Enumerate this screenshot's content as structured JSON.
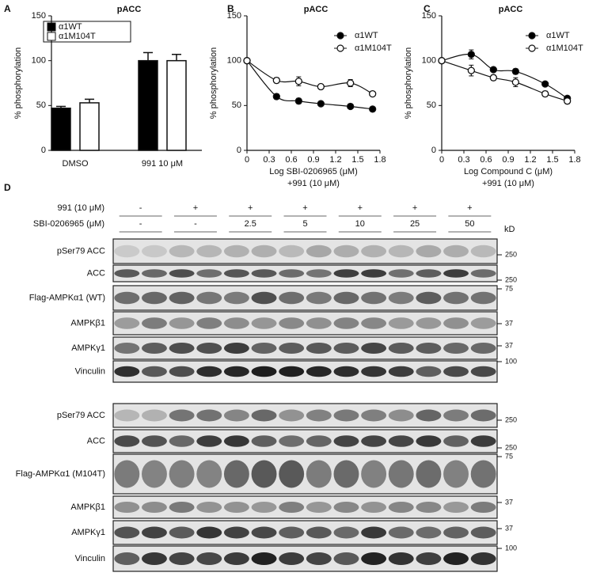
{
  "chart_data": [
    {
      "type": "bar",
      "panel": "A",
      "title": "pACC",
      "ylabel": "% phosphorylation",
      "categories": [
        "DMSO",
        "991 10 μM"
      ],
      "series": [
        {
          "name": "α1WT",
          "color": "#000000",
          "values": [
            47,
            100
          ],
          "errors": [
            2,
            9
          ]
        },
        {
          "name": "α1M104T",
          "color": "#ffffff",
          "values": [
            53,
            100
          ],
          "errors": [
            4,
            7
          ]
        }
      ],
      "ylim": [
        0,
        150
      ],
      "yticks": [
        0,
        50,
        100,
        150
      ]
    },
    {
      "type": "scatter",
      "panel": "B",
      "title": "pACC",
      "ylabel": "% phosphorylation",
      "xlabel": [
        "Log SBI-0206965 (μM)",
        "+991 (10 μM)"
      ],
      "x": [
        0,
        0.4,
        0.7,
        1.0,
        1.4,
        1.7
      ],
      "series": [
        {
          "name": "α1WT",
          "color": "#000000",
          "values": [
            100,
            60,
            55,
            52,
            49,
            46
          ],
          "errors": [
            0,
            3,
            3,
            1,
            1,
            1
          ]
        },
        {
          "name": "α1M104T",
          "color": "#ffffff",
          "values": [
            100,
            78,
            77,
            71,
            75,
            63
          ],
          "errors": [
            0,
            3,
            5,
            2,
            4,
            2
          ]
        }
      ],
      "xlim": [
        0,
        1.8
      ],
      "xticks": [
        0,
        0.3,
        0.6,
        0.9,
        1.2,
        1.5,
        1.8
      ],
      "ylim": [
        0,
        150
      ],
      "yticks": [
        0,
        50,
        100,
        150
      ]
    },
    {
      "type": "scatter",
      "panel": "C",
      "title": "pACC",
      "ylabel": "% phosphorylation",
      "xlabel": [
        "Log Compound C (μM)",
        "+991 (10 μM)"
      ],
      "x": [
        0,
        0.4,
        0.7,
        1.0,
        1.4,
        1.7
      ],
      "series": [
        {
          "name": "α1WT",
          "color": "#000000",
          "values": [
            100,
            107,
            90,
            88,
            74,
            58
          ],
          "errors": [
            0,
            5,
            2,
            3,
            2,
            2
          ]
        },
        {
          "name": "α1M104T",
          "color": "#ffffff",
          "values": [
            100,
            89,
            81,
            76,
            63,
            55
          ],
          "errors": [
            0,
            6,
            3,
            5,
            3,
            3
          ]
        }
      ],
      "xlim": [
        0,
        1.8
      ],
      "xticks": [
        0,
        0.3,
        0.6,
        0.9,
        1.2,
        1.5,
        1.8
      ],
      "ylim": [
        0,
        150
      ],
      "yticks": [
        0,
        50,
        100,
        150
      ]
    }
  ],
  "blots": {
    "panel": "D",
    "unit": "kD",
    "header": [
      {
        "label": "991 (10 μM)",
        "values": [
          "-",
          "+",
          "+",
          "+",
          "+",
          "+",
          "+"
        ]
      },
      {
        "label": "SBI-0206965 (μM)",
        "values": [
          "-",
          "-",
          "2.5",
          "5",
          "10",
          "25",
          "50"
        ]
      }
    ],
    "sets": [
      {
        "rows": [
          {
            "label": "pSer79 ACC",
            "marker": "250"
          },
          {
            "label": "ACC",
            "marker": "250"
          },
          {
            "label": "Flag-AMPKα1 (WT)",
            "marker": "75"
          },
          {
            "label": "AMPKβ1",
            "marker": "37"
          },
          {
            "label": "AMPKγ1",
            "marker": "37"
          },
          {
            "label": "Vinculin",
            "marker": "100"
          }
        ]
      },
      {
        "rows": [
          {
            "label": "pSer79 ACC",
            "marker": "250"
          },
          {
            "label": "ACC",
            "marker": "250"
          },
          {
            "label": "Flag-AMPKα1 (M104T)",
            "marker": "75"
          },
          {
            "label": "AMPKβ1",
            "marker": "37"
          },
          {
            "label": "AMPKγ1",
            "marker": "37"
          },
          {
            "label": "Vinculin",
            "marker": "100"
          }
        ]
      }
    ]
  }
}
